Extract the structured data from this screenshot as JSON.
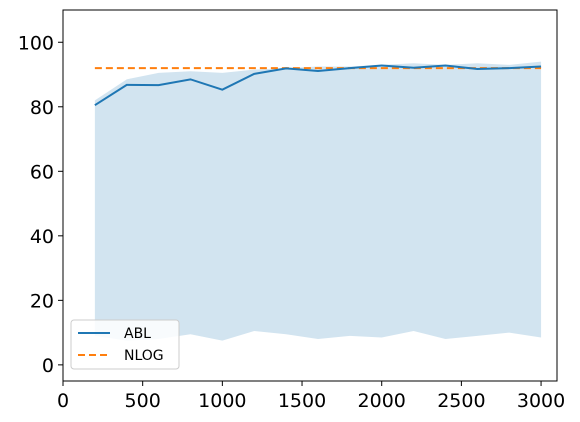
{
  "chart_data": {
    "type": "line",
    "title": "",
    "xlabel": "",
    "ylabel": "",
    "xlim": [
      0,
      3100
    ],
    "ylim": [
      -5,
      110
    ],
    "x_ticks": [
      0,
      500,
      1000,
      1500,
      2000,
      2500,
      3000
    ],
    "y_ticks": [
      0,
      20,
      40,
      60,
      80,
      100
    ],
    "grid": false,
    "legend_position": "lower-left",
    "series": [
      {
        "name": "ABL",
        "style": "solid",
        "color": "#1f77b4",
        "x": [
          200,
          400,
          600,
          800,
          1000,
          1200,
          1400,
          1600,
          1800,
          2000,
          2200,
          2400,
          2600,
          2800,
          3000
        ],
        "y": [
          80.5,
          86.8,
          86.7,
          88.5,
          85.3,
          90.2,
          91.9,
          91.1,
          92.0,
          92.8,
          92.1,
          92.8,
          91.7,
          92.0,
          92.5
        ]
      },
      {
        "name": "NLOG",
        "style": "dashed",
        "color": "#ff7f0e",
        "x": [
          200,
          3000
        ],
        "y": [
          92,
          92
        ]
      }
    ],
    "band": {
      "color": "#1f77b4",
      "opacity": 0.2,
      "x": [
        200,
        400,
        600,
        800,
        1000,
        1200,
        1400,
        1600,
        1800,
        2000,
        2200,
        2400,
        2600,
        2800,
        3000
      ],
      "upper": [
        82.0,
        88.5,
        90.5,
        91.0,
        90.5,
        91.5,
        92.0,
        92.5,
        92.5,
        93.0,
        93.5,
        93.0,
        93.5,
        93.0,
        94.0
      ],
      "lower": [
        9.0,
        7.5,
        8.0,
        9.5,
        7.5,
        10.5,
        9.5,
        8.0,
        9.0,
        8.5,
        10.5,
        8.0,
        9.0,
        10.0,
        8.5
      ]
    }
  }
}
